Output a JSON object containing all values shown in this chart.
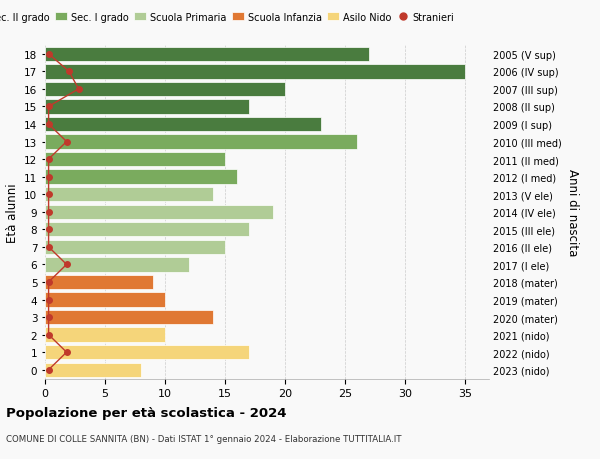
{
  "ages": [
    18,
    17,
    16,
    15,
    14,
    13,
    12,
    11,
    10,
    9,
    8,
    7,
    6,
    5,
    4,
    3,
    2,
    1,
    0
  ],
  "years_labels": [
    "2005 (V sup)",
    "2006 (IV sup)",
    "2007 (III sup)",
    "2008 (II sup)",
    "2009 (I sup)",
    "2010 (III med)",
    "2011 (II med)",
    "2012 (I med)",
    "2013 (V ele)",
    "2014 (IV ele)",
    "2015 (III ele)",
    "2016 (II ele)",
    "2017 (I ele)",
    "2018 (mater)",
    "2019 (mater)",
    "2020 (mater)",
    "2021 (nido)",
    "2022 (nido)",
    "2023 (nido)"
  ],
  "bar_values": [
    27,
    35,
    20,
    17,
    23,
    26,
    15,
    16,
    14,
    19,
    17,
    15,
    12,
    9,
    10,
    14,
    10,
    17,
    8
  ],
  "bar_colors": [
    "#4a7c3f",
    "#4a7c3f",
    "#4a7c3f",
    "#4a7c3f",
    "#4a7c3f",
    "#7aab5e",
    "#7aab5e",
    "#7aab5e",
    "#b0cc96",
    "#b0cc96",
    "#b0cc96",
    "#b0cc96",
    "#b0cc96",
    "#e07833",
    "#e07833",
    "#e07833",
    "#f5d57a",
    "#f5d57a",
    "#f5d57a"
  ],
  "stranieri_x": [
    0.3,
    2.0,
    2.8,
    0.3,
    0.3,
    1.8,
    0.3,
    0.3,
    0.3,
    0.3,
    0.3,
    0.3,
    1.8,
    0.3,
    0.3,
    0.3,
    0.3,
    1.8,
    0.3
  ],
  "legend_labels": [
    "Sec. II grado",
    "Sec. I grado",
    "Scuola Primaria",
    "Scuola Infanzia",
    "Asilo Nido",
    "Stranieri"
  ],
  "legend_colors": [
    "#4a7c3f",
    "#7aab5e",
    "#b0cc96",
    "#e07833",
    "#f5d57a",
    "#c0392b"
  ],
  "ylabel_left": "Età alunni",
  "ylabel_right": "Anni di nascita",
  "title": "Popolazione per età scolastica - 2024",
  "subtitle": "COMUNE DI COLLE SANNITA (BN) - Dati ISTAT 1° gennaio 2024 - Elaborazione TUTTITALIA.IT",
  "xlim": [
    0,
    37
  ],
  "stranieri_color": "#c0392b",
  "bg_color": "#f9f9f9",
  "bar_edge_color": "white",
  "bar_height": 0.82
}
